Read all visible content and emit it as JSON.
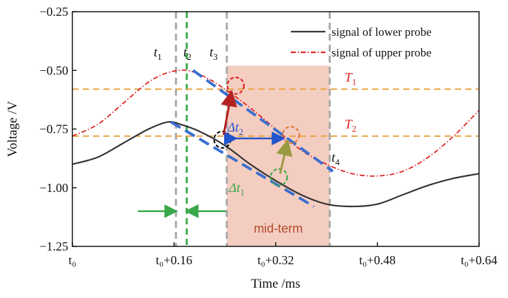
{
  "chart_data": {
    "type": "line",
    "title": "",
    "xlabel": "Time /ms",
    "ylabel": "Voltage /V",
    "xlim": [
      0,
      0.64
    ],
    "ylim": [
      -1.25,
      -0.25
    ],
    "x_ticks": [
      0,
      0.16,
      0.32,
      0.48,
      0.64
    ],
    "x_tick_labels": [
      "t₀",
      "t₀+0.16",
      "t₀+0.32",
      "t₀+0.48",
      "t₀+0.64"
    ],
    "y_ticks": [
      -1.25,
      -1.0,
      -0.75,
      -0.5,
      -0.25
    ],
    "y_tick_labels": [
      "−1.25",
      "−1.00",
      "−0.75",
      "−0.50",
      "−0.25"
    ],
    "legend_position": "top-right",
    "series": [
      {
        "name": "signal of lower probe",
        "color": "#333333",
        "style": "solid",
        "x": [
          0,
          0.04,
          0.08,
          0.12,
          0.15,
          0.17,
          0.2,
          0.24,
          0.28,
          0.32,
          0.36,
          0.4,
          0.44,
          0.48,
          0.52,
          0.56,
          0.6,
          0.64
        ],
        "y": [
          -0.9,
          -0.87,
          -0.81,
          -0.75,
          -0.72,
          -0.73,
          -0.76,
          -0.82,
          -0.9,
          -0.97,
          -1.03,
          -1.07,
          -1.08,
          -1.07,
          -1.03,
          -0.99,
          -0.96,
          -0.94
        ]
      },
      {
        "name": "signal of upper probe",
        "color": "#dd2222",
        "style": "dashdot",
        "x": [
          0,
          0.04,
          0.08,
          0.12,
          0.15,
          0.18,
          0.21,
          0.24,
          0.28,
          0.32,
          0.36,
          0.4,
          0.44,
          0.48,
          0.52,
          0.56,
          0.6,
          0.64
        ],
        "y": [
          -0.78,
          -0.73,
          -0.64,
          -0.55,
          -0.51,
          -0.5,
          -0.53,
          -0.58,
          -0.66,
          -0.75,
          -0.84,
          -0.9,
          -0.94,
          -0.95,
          -0.93,
          -0.87,
          -0.78,
          -0.67
        ]
      }
    ],
    "thresholds": [
      {
        "name": "T₁",
        "main": "T",
        "sub": "1",
        "value": -0.58,
        "color": "#e8a33d"
      },
      {
        "name": "T₂",
        "main": "T",
        "sub": "2",
        "value": -0.78,
        "color": "#e8a33d"
      }
    ],
    "vertical_markers": [
      {
        "name": "t₁",
        "main": "t",
        "sub": "1",
        "x": 0.163,
        "color": "#a8a8a8",
        "style": "dashed"
      },
      {
        "name": "t₂",
        "main": "t",
        "sub": "2",
        "x": 0.18,
        "color": "#3aa84a",
        "style": "dashed"
      },
      {
        "name": "t₃",
        "main": "t",
        "sub": "3",
        "x": 0.243,
        "color": "#a8a8a8",
        "style": "dashed"
      },
      {
        "name": "t₄",
        "main": "t",
        "sub": "4",
        "x": 0.405,
        "color": "#a8a8a8",
        "style": "dashed"
      }
    ],
    "shaded_region": {
      "label": "mid-term",
      "x_start": 0.243,
      "x_end": 0.405,
      "y_top": -0.48,
      "color": "#f2c4b6"
    },
    "annotations": [
      {
        "name": "Δt₂",
        "main": "Δt",
        "sub": "2",
        "color": "#2255cc"
      },
      {
        "name": "Δt₁",
        "main": "Δt",
        "sub": "1",
        "color": "#3aa84a"
      }
    ]
  }
}
